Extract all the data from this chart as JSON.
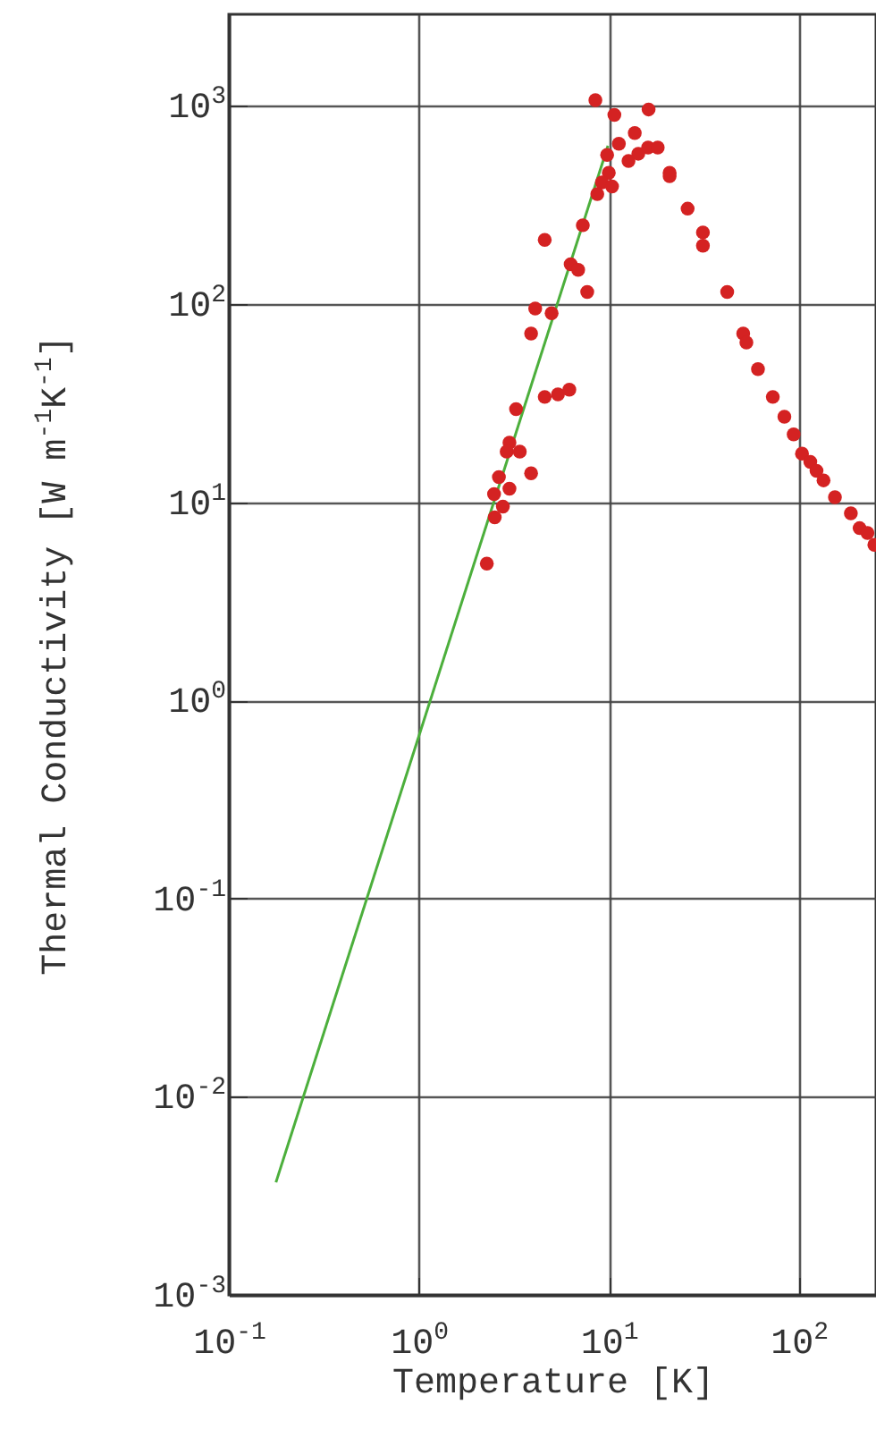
{
  "chart_data": {
    "type": "scatter",
    "xlabel": "Temperature [K]",
    "ylabel": "Thermal Conductivity [W m$^{-1}$K$^{-1}$]",
    "log": "xy",
    "grid": true,
    "marker": "circle",
    "xlim": [
      0.1,
      255
    ],
    "ylim": [
      0.001,
      2900
    ],
    "xticks": [
      {
        "value": 0.1,
        "label": "10$^{-1}$"
      },
      {
        "value": 1,
        "label": "10$^{0}$"
      },
      {
        "value": 10,
        "label": "10$^{1}$"
      },
      {
        "value": 100,
        "label": "10$^{2}$"
      }
    ],
    "yticks": [
      {
        "value": 0.001,
        "label": "10$^{-3}$"
      },
      {
        "value": 0.01,
        "label": "10$^{-2}$"
      },
      {
        "value": 0.1,
        "label": "10$^{-1}$"
      },
      {
        "value": 1,
        "label": "10$^{0}$"
      },
      {
        "value": 10,
        "label": "10$^{1}$"
      },
      {
        "value": 100,
        "label": "10$^{2}$"
      },
      {
        "value": 1000,
        "label": "10$^{3}$"
      }
    ],
    "series": [
      {
        "color": "#d42222",
        "x": [
          8.5,
          10.7,
          16.2,
          13.7,
          11.3,
          9.8,
          12.7,
          14.3,
          16.1,
          18.1,
          20.9,
          20.9,
          10,
          9.2,
          10.4,
          8.7,
          26,
          31.3,
          31.3,
          7.3,
          4.6,
          6.3,
          6.9,
          7.7,
          42,
          4.1,
          5.0,
          3.9,
          4.6,
          5.4,
          6.2,
          3.25,
          3.0,
          2.9,
          3.4,
          3.9,
          2.64,
          2.49,
          3.0,
          2.77,
          2.51,
          2.28,
          51,
          53,
          61,
          73,
          84,
          94,
          104,
          115,
          124,
          135,
          155,
          188,
          209,
          230,
          250
        ],
        "values": [
          1070,
          900,
          960,
          730,
          645,
          566,
          528,
          574,
          617,
          617,
          460,
          442,
          460,
          411,
          392,
          359,
          303,
          230,
          197,
          250,
          211,
          159,
          149,
          115,
          115,
          95,
          90,
          71,
          34,
          35,
          37,
          29.5,
          20,
          18,
          18,
          14,
          13.4,
          11,
          11.7,
          9.5,
          8.4,
          4.9,
          71,
          64,
          47,
          34,
          27,
          22,
          17.6,
          16,
          14.4,
          12.9,
          10.6,
          8.8,
          7.4,
          7.0,
          6.1
        ]
      },
      {
        "type": "line",
        "color": "#4caf3c",
        "marker": "none",
        "x": [
          0.177,
          9.9
        ],
        "values": [
          0.0037,
          630
        ]
      }
    ]
  }
}
